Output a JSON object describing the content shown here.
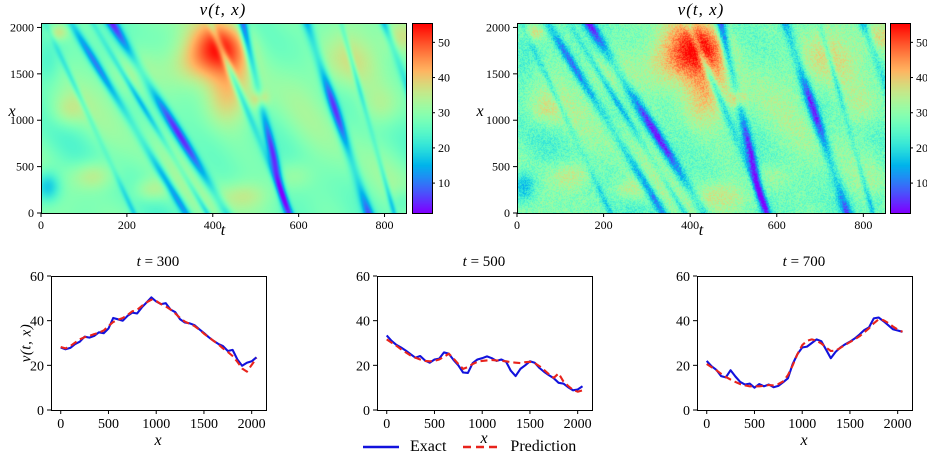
{
  "figure": {
    "background": "#ffffff"
  },
  "colors": {
    "exact": "#1212dd",
    "prediction": "#e8231c",
    "axis": "#000000"
  },
  "legend": {
    "items": [
      {
        "label": "Exact",
        "style": "solid",
        "color": "exact"
      },
      {
        "label": "Prediction",
        "style": "dashed",
        "color": "prediction"
      }
    ]
  },
  "chart_data": [
    {
      "type": "heatmap",
      "name": "exact-field",
      "title": "v(t, x)",
      "xlabel": "t",
      "ylabel": "x",
      "x_range": [
        0,
        850
      ],
      "y_range": [
        0,
        2048
      ],
      "v_range": [
        1.5,
        55.5
      ],
      "xticks": [
        0,
        200,
        400,
        600,
        800
      ],
      "yticks": [
        0,
        500,
        1000,
        1500,
        2000
      ],
      "colorbar_ticks": [
        10,
        20,
        30,
        40,
        50
      ],
      "colormap": "rainbow",
      "base": 28,
      "noise": 0,
      "seed": 1,
      "gain": 1.0,
      "harmonics": [
        {
          "a": 2.2,
          "ft": 2.0,
          "fx": 1.3,
          "ph": 1.1
        },
        {
          "a": 1.5,
          "ft": 3.4,
          "fx": 2.2,
          "ph": 3.9
        },
        {
          "a": 1.1,
          "ft": 5.2,
          "fx": 0.7,
          "ph": 0.6
        }
      ],
      "hot_spots": [
        {
          "t": 420,
          "x": 1800,
          "st": 70,
          "sx": 300,
          "a": 20
        },
        {
          "t": 350,
          "x": 1600,
          "st": 60,
          "sx": 260,
          "a": 10
        },
        {
          "t": 430,
          "x": 1250,
          "st": 55,
          "sx": 330,
          "a": 12
        },
        {
          "t": 510,
          "x": 1230,
          "st": 18,
          "sx": 85,
          "a": 11
        },
        {
          "t": 120,
          "x": 400,
          "st": 50,
          "sx": 160,
          "a": 9
        },
        {
          "t": 255,
          "x": 240,
          "st": 40,
          "sx": 130,
          "a": 8
        },
        {
          "t": 60,
          "x": 1100,
          "st": 40,
          "sx": 180,
          "a": 7
        },
        {
          "t": 40,
          "x": 1950,
          "st": 22,
          "sx": 90,
          "a": 9
        },
        {
          "t": 700,
          "x": 1600,
          "st": 80,
          "sx": 330,
          "a": 9
        },
        {
          "t": 790,
          "x": 1150,
          "st": 50,
          "sx": 220,
          "a": 6
        },
        {
          "t": 840,
          "x": 1900,
          "st": 40,
          "sx": 180,
          "a": 7
        },
        {
          "t": 470,
          "x": 180,
          "st": 60,
          "sx": 150,
          "a": 7
        },
        {
          "t": 590,
          "x": 400,
          "st": 45,
          "sx": 160,
          "a": 5
        },
        {
          "t": 210,
          "x": 1500,
          "st": 60,
          "sx": 250,
          "a": 6
        }
      ],
      "cool_spots": [
        {
          "t": 15,
          "x": 280,
          "st": 30,
          "sx": 170,
          "a": 13
        },
        {
          "t": 10,
          "x": 1600,
          "st": 35,
          "sx": 250,
          "a": 6
        },
        {
          "t": 845,
          "x": 120,
          "st": 30,
          "sx": 150,
          "a": 6
        }
      ],
      "cool_streaks": [
        {
          "t": 70,
          "k": 0.13,
          "w": 13,
          "d": 16,
          "p": 0.5
        },
        {
          "t": 120,
          "k": 0.13,
          "w": 9,
          "d": 11,
          "p": 2.1
        },
        {
          "t": 165,
          "k": 0.13,
          "w": 15,
          "d": 22,
          "p": 4.0
        },
        {
          "t": 395,
          "k": 0.09,
          "w": 10,
          "d": 14,
          "p": 1.3
        },
        {
          "t": 470,
          "k": 0.05,
          "w": 11,
          "d": 20,
          "p": 5.2
        },
        {
          "t": 620,
          "k": 0.07,
          "w": 13,
          "d": 21,
          "p": 2.8
        },
        {
          "t": 700,
          "k": 0.06,
          "w": 7,
          "d": 10,
          "p": 0.9
        },
        {
          "t": 800,
          "k": 0.08,
          "w": 11,
          "d": 15,
          "p": 3.6
        },
        {
          "t": 10,
          "k": 0.1,
          "w": 8,
          "d": 8,
          "p": 1.7
        }
      ]
    },
    {
      "type": "heatmap",
      "name": "predicted-field",
      "title": "v(t, x)",
      "xlabel": "t",
      "ylabel": "x",
      "x_range": [
        0,
        850
      ],
      "y_range": [
        0,
        2048
      ],
      "v_range": [
        1.5,
        55.5
      ],
      "xticks": [
        0,
        200,
        400,
        600,
        800
      ],
      "yticks": [
        0,
        500,
        1000,
        1500,
        2000
      ],
      "colorbar_ticks": [
        10,
        20,
        30,
        40,
        50
      ],
      "colormap": "rainbow",
      "base": 28,
      "noise": 4.0,
      "seed": 7,
      "gain": 1.06,
      "harmonics": [
        {
          "a": 2.2,
          "ft": 2.0,
          "fx": 1.3,
          "ph": 1.1
        },
        {
          "a": 1.5,
          "ft": 3.4,
          "fx": 2.2,
          "ph": 3.9
        },
        {
          "a": 1.1,
          "ft": 5.2,
          "fx": 0.7,
          "ph": 0.6
        }
      ],
      "hot_spots": [
        {
          "t": 420,
          "x": 1800,
          "st": 70,
          "sx": 300,
          "a": 20
        },
        {
          "t": 350,
          "x": 1600,
          "st": 60,
          "sx": 260,
          "a": 10
        },
        {
          "t": 430,
          "x": 1250,
          "st": 55,
          "sx": 330,
          "a": 12
        },
        {
          "t": 510,
          "x": 1230,
          "st": 18,
          "sx": 85,
          "a": 11
        },
        {
          "t": 120,
          "x": 400,
          "st": 50,
          "sx": 160,
          "a": 9
        },
        {
          "t": 255,
          "x": 240,
          "st": 40,
          "sx": 130,
          "a": 8
        },
        {
          "t": 60,
          "x": 1100,
          "st": 40,
          "sx": 180,
          "a": 7
        },
        {
          "t": 40,
          "x": 1950,
          "st": 22,
          "sx": 90,
          "a": 9
        },
        {
          "t": 700,
          "x": 1600,
          "st": 80,
          "sx": 330,
          "a": 9
        },
        {
          "t": 790,
          "x": 1150,
          "st": 50,
          "sx": 220,
          "a": 6
        },
        {
          "t": 840,
          "x": 1900,
          "st": 40,
          "sx": 180,
          "a": 7
        },
        {
          "t": 470,
          "x": 180,
          "st": 60,
          "sx": 150,
          "a": 7
        },
        {
          "t": 590,
          "x": 400,
          "st": 45,
          "sx": 160,
          "a": 5
        },
        {
          "t": 210,
          "x": 1500,
          "st": 60,
          "sx": 250,
          "a": 6
        }
      ],
      "cool_spots": [
        {
          "t": 15,
          "x": 280,
          "st": 30,
          "sx": 170,
          "a": 13
        },
        {
          "t": 10,
          "x": 1600,
          "st": 35,
          "sx": 250,
          "a": 6
        },
        {
          "t": 845,
          "x": 120,
          "st": 30,
          "sx": 150,
          "a": 6
        }
      ],
      "cool_streaks": [
        {
          "t": 70,
          "k": 0.13,
          "w": 13,
          "d": 16,
          "p": 0.5
        },
        {
          "t": 120,
          "k": 0.13,
          "w": 9,
          "d": 11,
          "p": 2.1
        },
        {
          "t": 165,
          "k": 0.13,
          "w": 15,
          "d": 22,
          "p": 4.0
        },
        {
          "t": 395,
          "k": 0.09,
          "w": 10,
          "d": 14,
          "p": 1.3
        },
        {
          "t": 470,
          "k": 0.05,
          "w": 11,
          "d": 20,
          "p": 5.2
        },
        {
          "t": 620,
          "k": 0.07,
          "w": 13,
          "d": 21,
          "p": 2.8
        },
        {
          "t": 700,
          "k": 0.06,
          "w": 7,
          "d": 10,
          "p": 0.9
        },
        {
          "t": 800,
          "k": 0.08,
          "w": 11,
          "d": 15,
          "p": 3.6
        },
        {
          "t": 10,
          "k": 0.1,
          "w": 8,
          "d": 8,
          "p": 1.7
        }
      ]
    },
    {
      "type": "line",
      "name": "slice-t300",
      "title_var": "t",
      "title_rest": " = 300",
      "xlabel": "x",
      "ylabel": "v(t, x)",
      "xlim": [
        -102,
        2150
      ],
      "ylim": [
        0,
        60
      ],
      "xticks": [
        0,
        500,
        1000,
        1500,
        2000
      ],
      "yticks": [
        0,
        20,
        40,
        60
      ],
      "x_start": 0,
      "x_step": 50,
      "series": [
        {
          "name": "Exact",
          "color": "exact",
          "style": "solid",
          "values": [
            28.0,
            27.2,
            27.8,
            29.5,
            30.6,
            32.8,
            32.4,
            33.2,
            34.8,
            34.4,
            36.5,
            41.2,
            40.6,
            40.0,
            42.2,
            43.6,
            43.2,
            46.0,
            48.2,
            50.4,
            48.6,
            47.4,
            47.8,
            45.0,
            43.8,
            40.6,
            39.2,
            38.8,
            38.0,
            36.2,
            34.5,
            32.6,
            31.0,
            29.6,
            28.6,
            26.4,
            26.9,
            22.6,
            19.8,
            21.2,
            21.8,
            23.6
          ]
        },
        {
          "name": "Prediction",
          "color": "prediction",
          "style": "dashed",
          "values": [
            28.2,
            27.6,
            28.6,
            30.2,
            31.6,
            32.6,
            33.2,
            34.0,
            34.6,
            35.6,
            37.6,
            39.4,
            40.4,
            41.2,
            42.6,
            44.2,
            44.8,
            46.6,
            48.2,
            49.4,
            48.8,
            47.4,
            46.4,
            45.0,
            43.2,
            41.2,
            39.6,
            38.6,
            37.6,
            36.0,
            34.2,
            32.6,
            31.0,
            29.4,
            27.6,
            26.0,
            24.2,
            21.6,
            18.6,
            17.2,
            20.2,
            23.2
          ]
        }
      ]
    },
    {
      "type": "line",
      "name": "slice-t500",
      "title_var": "t",
      "title_rest": " = 500",
      "xlabel": "x",
      "ylabel": "",
      "xlim": [
        -102,
        2150
      ],
      "ylim": [
        0,
        60
      ],
      "xticks": [
        0,
        500,
        1000,
        1500,
        2000
      ],
      "yticks": [
        0,
        20,
        40,
        60
      ],
      "x_start": 0,
      "x_step": 50,
      "series": [
        {
          "name": "Exact",
          "color": "exact",
          "style": "solid",
          "values": [
            33.4,
            31.0,
            29.2,
            28.0,
            26.6,
            25.0,
            23.4,
            24.2,
            22.2,
            21.2,
            22.6,
            23.0,
            25.8,
            25.2,
            22.4,
            20.0,
            16.8,
            16.6,
            21.0,
            22.6,
            23.2,
            24.0,
            23.2,
            22.0,
            22.6,
            21.6,
            17.6,
            15.2,
            18.4,
            20.0,
            21.8,
            21.2,
            18.8,
            17.0,
            15.6,
            14.2,
            12.2,
            11.8,
            10.2,
            8.8,
            9.2,
            10.6
          ]
        },
        {
          "name": "Prediction",
          "color": "prediction",
          "style": "dashed",
          "values": [
            31.6,
            30.2,
            28.8,
            27.2,
            25.8,
            24.4,
            23.4,
            22.6,
            22.0,
            21.8,
            22.0,
            22.6,
            23.8,
            25.2,
            23.0,
            20.6,
            18.4,
            19.2,
            20.6,
            21.6,
            22.0,
            22.2,
            22.4,
            22.2,
            22.0,
            21.8,
            21.4,
            21.2,
            21.0,
            21.4,
            21.6,
            21.0,
            19.6,
            17.8,
            16.0,
            14.4,
            16.4,
            12.8,
            10.8,
            9.0,
            8.2,
            8.8
          ]
        }
      ]
    },
    {
      "type": "line",
      "name": "slice-t700",
      "title_var": "t",
      "title_rest": " = 700",
      "xlabel": "x",
      "ylabel": "",
      "xlim": [
        -102,
        2150
      ],
      "ylim": [
        0,
        60
      ],
      "xticks": [
        0,
        500,
        1000,
        1500,
        2000
      ],
      "yticks": [
        0,
        20,
        40,
        60
      ],
      "x_start": 0,
      "x_step": 50,
      "series": [
        {
          "name": "Exact",
          "color": "exact",
          "style": "solid",
          "values": [
            22.0,
            19.6,
            18.0,
            15.2,
            14.6,
            17.8,
            15.0,
            12.6,
            11.4,
            11.8,
            10.0,
            11.6,
            10.6,
            11.4,
            10.2,
            10.8,
            12.4,
            14.2,
            20.6,
            25.0,
            28.0,
            28.4,
            30.0,
            31.6,
            30.8,
            27.0,
            23.2,
            26.0,
            28.0,
            29.4,
            30.6,
            32.0,
            33.8,
            35.8,
            37.0,
            41.0,
            41.4,
            39.8,
            38.0,
            36.2,
            35.6,
            35.0
          ]
        },
        {
          "name": "Prediction",
          "color": "prediction",
          "style": "dashed",
          "values": [
            20.6,
            19.2,
            17.8,
            16.2,
            14.8,
            13.6,
            12.6,
            11.6,
            11.0,
            10.6,
            10.6,
            10.6,
            10.8,
            11.2,
            11.0,
            11.6,
            12.8,
            15.6,
            20.0,
            25.0,
            29.0,
            31.0,
            31.6,
            31.0,
            29.8,
            28.0,
            26.4,
            26.6,
            27.8,
            29.2,
            30.4,
            31.6,
            33.0,
            34.8,
            36.6,
            38.8,
            40.6,
            40.2,
            39.0,
            37.4,
            36.0,
            35.0
          ]
        }
      ]
    }
  ]
}
